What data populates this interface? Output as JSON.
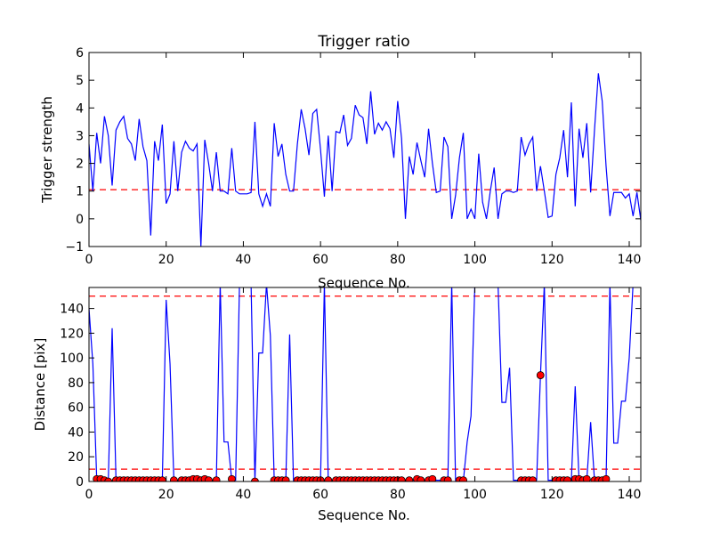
{
  "chart_data": [
    {
      "type": "line",
      "title": "Trigger ratio",
      "xlabel": "Sequence No.",
      "ylabel": "Trigger strength",
      "xlim": [
        0,
        143
      ],
      "ylim": [
        -1,
        6
      ],
      "xticks": [
        "0",
        "20",
        "40",
        "60",
        "80",
        "100",
        "120",
        "140"
      ],
      "yticks": [
        "−1",
        "0",
        "1",
        "2",
        "3",
        "4",
        "5",
        "6"
      ],
      "grid": false,
      "line_color": "#0000ff",
      "threshold": {
        "value": 1.05,
        "style": "dashed",
        "color": "#ff0000"
      },
      "series": [
        {
          "x": [
            0,
            1,
            2,
            3,
            4,
            5,
            6,
            7,
            8,
            9,
            10,
            11,
            12,
            13,
            14,
            15,
            16,
            17,
            18,
            19,
            20,
            21,
            22,
            23,
            24,
            25,
            26,
            27,
            28,
            29,
            30,
            31,
            32,
            33,
            34,
            35,
            36,
            37,
            38,
            39,
            40,
            41,
            42,
            43,
            44,
            45,
            46,
            47,
            48,
            49,
            50,
            51,
            52,
            53,
            54,
            55,
            56,
            57,
            58,
            59,
            60,
            61,
            62,
            63,
            64,
            65,
            66,
            67,
            68,
            69,
            70,
            71,
            72,
            73,
            74,
            75,
            76,
            77,
            78,
            79,
            80,
            81,
            82,
            83,
            84,
            85,
            86,
            87,
            88,
            89,
            90,
            91,
            92,
            93,
            94,
            95,
            96,
            97,
            98,
            99,
            100,
            101,
            102,
            103,
            104,
            105,
            106,
            107,
            108,
            109,
            110,
            111,
            112,
            113,
            114,
            115,
            116,
            117,
            118,
            119,
            120,
            121,
            122,
            123,
            124,
            125,
            126,
            127,
            128,
            129,
            130,
            131,
            132,
            133,
            134,
            135,
            136,
            137,
            138,
            139,
            140,
            141,
            142,
            143
          ],
          "y": [
            2.7,
            1.0,
            3.1,
            2.0,
            3.7,
            3.0,
            1.2,
            3.2,
            3.5,
            3.7,
            2.9,
            2.7,
            2.1,
            3.6,
            2.6,
            2.1,
            -0.6,
            2.8,
            2.1,
            3.4,
            0.55,
            0.9,
            2.8,
            1.0,
            2.4,
            2.8,
            2.55,
            2.45,
            2.7,
            -1.0,
            2.85,
            2.0,
            1.0,
            2.4,
            1.0,
            1.0,
            0.9,
            2.55,
            1.0,
            0.9,
            0.9,
            0.9,
            0.95,
            3.5,
            0.9,
            0.45,
            0.9,
            0.45,
            3.45,
            2.25,
            2.7,
            1.6,
            1.0,
            1.0,
            2.7,
            3.95,
            3.25,
            2.3,
            3.8,
            3.95,
            2.5,
            0.8,
            3.0,
            1.0,
            3.15,
            3.1,
            3.75,
            2.65,
            2.9,
            4.1,
            3.75,
            3.65,
            2.7,
            4.6,
            3.05,
            3.45,
            3.2,
            3.5,
            3.25,
            2.2,
            4.25,
            2.9,
            0.0,
            2.25,
            1.6,
            2.75,
            2.1,
            1.5,
            3.25,
            2.0,
            0.95,
            1.0,
            2.95,
            2.6,
            0.0,
            0.85,
            2.2,
            3.1,
            0.0,
            0.35,
            0.0,
            2.35,
            0.6,
            0.0,
            1.0,
            1.85,
            0.0,
            0.9,
            1.0,
            1.0,
            0.95,
            1.0,
            2.95,
            2.3,
            2.7,
            2.95,
            1.0,
            1.9,
            1.0,
            0.05,
            0.1,
            1.6,
            2.2,
            3.2,
            1.5,
            4.2,
            0.45,
            3.25,
            2.2,
            3.45,
            0.95,
            3.2,
            5.25,
            4.25,
            1.9,
            0.1,
            0.95,
            0.95,
            0.95,
            0.75,
            0.9,
            0.1,
            0.95,
            -0.05
          ]
        }
      ]
    },
    {
      "type": "line",
      "title": "",
      "xlabel": "Sequence No.",
      "ylabel": "Distance [pix]",
      "xlim": [
        0,
        143
      ],
      "ylim": [
        0,
        157
      ],
      "xticks": [
        "0",
        "20",
        "40",
        "60",
        "80",
        "100",
        "120",
        "140"
      ],
      "yticks": [
        "0",
        "20",
        "40",
        "60",
        "80",
        "100",
        "120",
        "140"
      ],
      "grid": false,
      "line_color": "#0000ff",
      "marker_color": "#ff0000",
      "thresholds": [
        {
          "value": 150,
          "style": "dashed",
          "color": "#ff0000"
        },
        {
          "value": 10,
          "style": "dashed",
          "color": "#ff0000"
        }
      ],
      "series": [
        {
          "x": [
            0,
            1,
            2,
            3,
            4,
            5,
            6,
            7,
            8,
            9,
            10,
            11,
            12,
            13,
            14,
            15,
            16,
            17,
            18,
            19,
            20,
            21,
            22,
            23,
            24,
            25,
            26,
            27,
            28,
            29,
            30,
            31,
            32,
            33,
            34,
            35,
            36,
            37,
            38,
            39,
            40,
            41,
            42,
            43,
            44,
            45,
            46,
            47,
            48,
            49,
            50,
            51,
            52,
            53,
            54,
            55,
            56,
            57,
            58,
            59,
            60,
            61,
            62,
            63,
            64,
            65,
            66,
            67,
            68,
            69,
            70,
            71,
            72,
            73,
            74,
            75,
            76,
            77,
            78,
            79,
            80,
            81,
            82,
            83,
            84,
            85,
            86,
            87,
            88,
            89,
            90,
            91,
            92,
            93,
            94,
            95,
            96,
            97,
            98,
            99,
            100,
            101,
            102,
            103,
            104,
            105,
            106,
            107,
            108,
            109,
            110,
            111,
            112,
            113,
            114,
            115,
            116,
            117,
            118,
            119,
            120,
            121,
            122,
            123,
            124,
            125,
            126,
            127,
            128,
            129,
            130,
            131,
            132,
            133,
            134,
            135,
            136,
            137,
            138,
            139,
            140,
            141,
            142,
            143
          ],
          "y": [
            140,
            95,
            2,
            2,
            1,
            0,
            124,
            1,
            1,
            1,
            1,
            1,
            1,
            1,
            1,
            1,
            1,
            1,
            1,
            1,
            147,
            95,
            1,
            1,
            1,
            1,
            1,
            1,
            1,
            1,
            1,
            1,
            1,
            1,
            160,
            32,
            32,
            1,
            1,
            160,
            160,
            160,
            160,
            0,
            104,
            104,
            160,
            118,
            1,
            1,
            1,
            1,
            119,
            0,
            1,
            1,
            1,
            1,
            1,
            1,
            1,
            160,
            1,
            1,
            1,
            1,
            1,
            1,
            1,
            1,
            1,
            1,
            1,
            1,
            1,
            1,
            1,
            1,
            1,
            1,
            1,
            1,
            1,
            1,
            1,
            1,
            1,
            1,
            1,
            1,
            1,
            1,
            1,
            1,
            160,
            0,
            0,
            0,
            32,
            53,
            160,
            160,
            160,
            160,
            160,
            160,
            160,
            64,
            64,
            92,
            1,
            1,
            1,
            1,
            1,
            1,
            1,
            86,
            160,
            1,
            1,
            1,
            1,
            1,
            1,
            1,
            77,
            1,
            1,
            1,
            48,
            1,
            1,
            1,
            1,
            160,
            31,
            31,
            65,
            65,
            100,
            160,
            160,
            160
          ],
          "markers": [
            {
              "x": 2,
              "y": 2
            },
            {
              "x": 3,
              "y": 2
            },
            {
              "x": 4,
              "y": 1
            },
            {
              "x": 5,
              "y": 0
            },
            {
              "x": 7,
              "y": 1
            },
            {
              "x": 8,
              "y": 1
            },
            {
              "x": 9,
              "y": 1
            },
            {
              "x": 10,
              "y": 1
            },
            {
              "x": 11,
              "y": 1
            },
            {
              "x": 12,
              "y": 1
            },
            {
              "x": 13,
              "y": 1
            },
            {
              "x": 14,
              "y": 1
            },
            {
              "x": 15,
              "y": 1
            },
            {
              "x": 16,
              "y": 1
            },
            {
              "x": 17,
              "y": 1
            },
            {
              "x": 18,
              "y": 1
            },
            {
              "x": 19,
              "y": 1
            },
            {
              "x": 22,
              "y": 1
            },
            {
              "x": 24,
              "y": 1
            },
            {
              "x": 25,
              "y": 1
            },
            {
              "x": 26,
              "y": 1
            },
            {
              "x": 27,
              "y": 2
            },
            {
              "x": 28,
              "y": 2
            },
            {
              "x": 29,
              "y": 1
            },
            {
              "x": 30,
              "y": 2
            },
            {
              "x": 31,
              "y": 1
            },
            {
              "x": 33,
              "y": 1
            },
            {
              "x": 37,
              "y": 2
            },
            {
              "x": 43,
              "y": 0
            },
            {
              "x": 48,
              "y": 1
            },
            {
              "x": 49,
              "y": 1
            },
            {
              "x": 50,
              "y": 1
            },
            {
              "x": 51,
              "y": 1
            },
            {
              "x": 54,
              "y": 1
            },
            {
              "x": 55,
              "y": 1
            },
            {
              "x": 56,
              "y": 1
            },
            {
              "x": 57,
              "y": 1
            },
            {
              "x": 58,
              "y": 1
            },
            {
              "x": 59,
              "y": 1
            },
            {
              "x": 60,
              "y": 1
            },
            {
              "x": 62,
              "y": 1
            },
            {
              "x": 64,
              "y": 1
            },
            {
              "x": 65,
              "y": 1
            },
            {
              "x": 66,
              "y": 1
            },
            {
              "x": 67,
              "y": 1
            },
            {
              "x": 68,
              "y": 1
            },
            {
              "x": 69,
              "y": 1
            },
            {
              "x": 70,
              "y": 1
            },
            {
              "x": 71,
              "y": 1
            },
            {
              "x": 72,
              "y": 1
            },
            {
              "x": 73,
              "y": 1
            },
            {
              "x": 74,
              "y": 1
            },
            {
              "x": 75,
              "y": 1
            },
            {
              "x": 76,
              "y": 1
            },
            {
              "x": 77,
              "y": 1
            },
            {
              "x": 78,
              "y": 1
            },
            {
              "x": 79,
              "y": 1
            },
            {
              "x": 80,
              "y": 1
            },
            {
              "x": 81,
              "y": 1
            },
            {
              "x": 83,
              "y": 1
            },
            {
              "x": 85,
              "y": 2
            },
            {
              "x": 86,
              "y": 1
            },
            {
              "x": 88,
              "y": 1
            },
            {
              "x": 89,
              "y": 2
            },
            {
              "x": 92,
              "y": 1
            },
            {
              "x": 93,
              "y": 1
            },
            {
              "x": 96,
              "y": 1
            },
            {
              "x": 97,
              "y": 1
            },
            {
              "x": 112,
              "y": 1
            },
            {
              "x": 113,
              "y": 1
            },
            {
              "x": 114,
              "y": 1
            },
            {
              "x": 115,
              "y": 1
            },
            {
              "x": 117,
              "y": 86
            },
            {
              "x": 121,
              "y": 1
            },
            {
              "x": 122,
              "y": 1
            },
            {
              "x": 123,
              "y": 1
            },
            {
              "x": 124,
              "y": 1
            },
            {
              "x": 126,
              "y": 2
            },
            {
              "x": 127,
              "y": 2
            },
            {
              "x": 128,
              "y": 1
            },
            {
              "x": 129,
              "y": 2
            },
            {
              "x": 131,
              "y": 1
            },
            {
              "x": 132,
              "y": 1
            },
            {
              "x": 133,
              "y": 1
            },
            {
              "x": 134,
              "y": 2
            }
          ]
        }
      ]
    }
  ]
}
